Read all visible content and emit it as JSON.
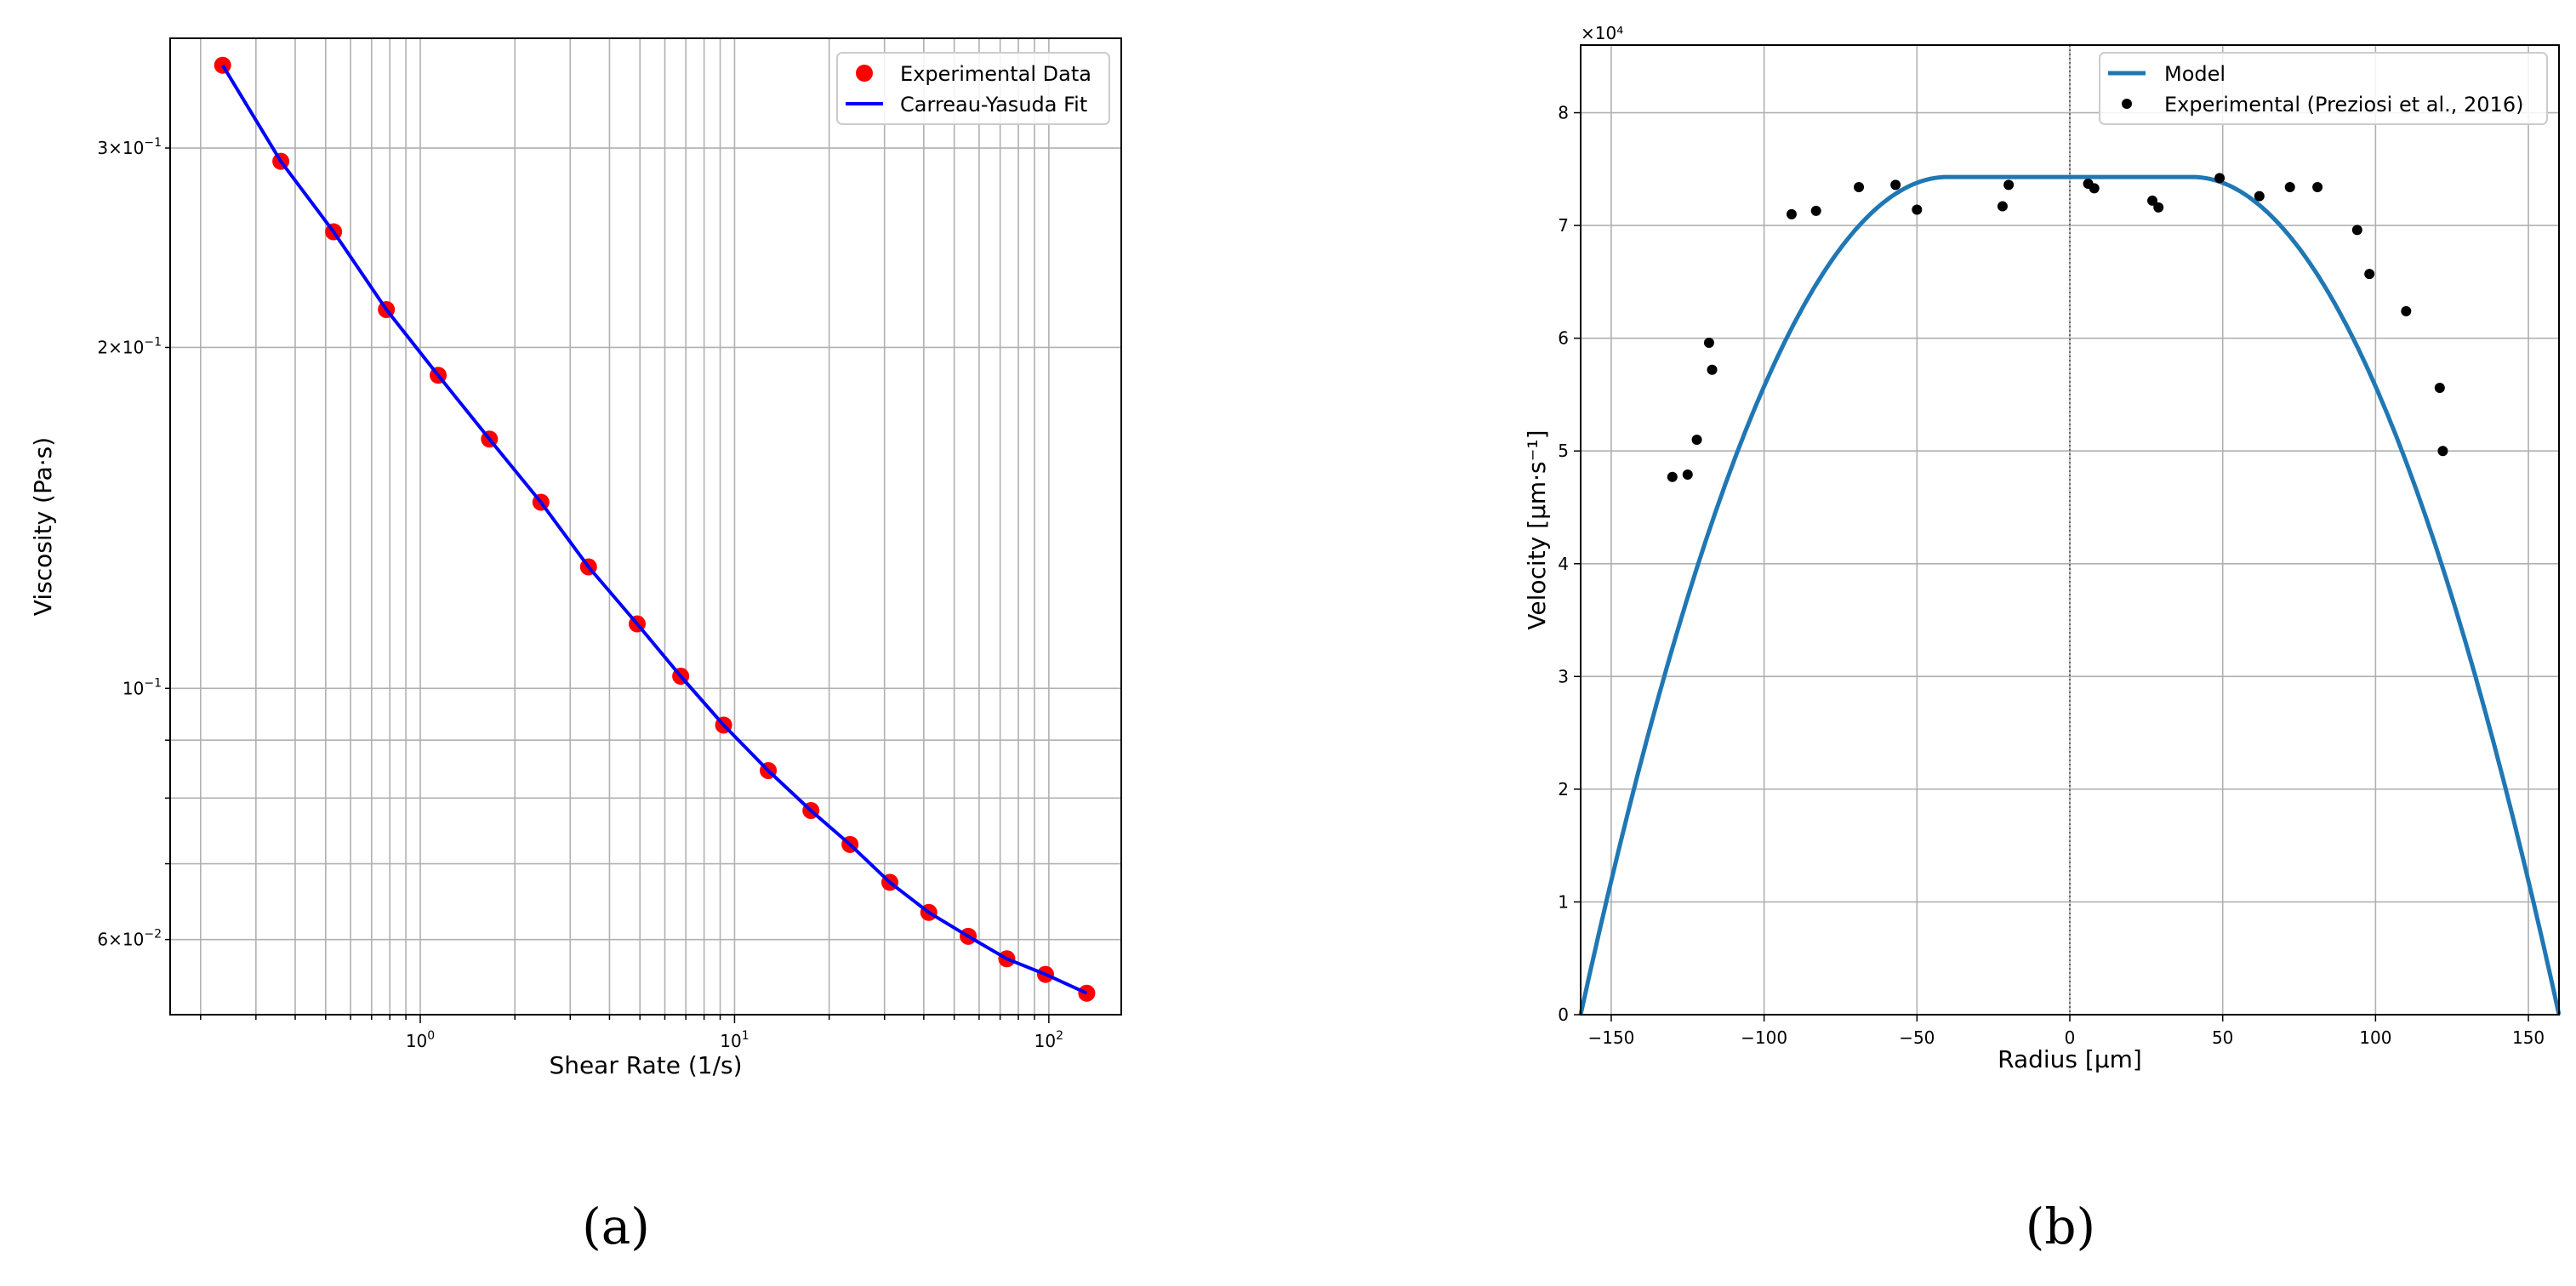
{
  "chart_data": [
    {
      "type": "line",
      "panel_label": "(a)",
      "title": "",
      "xlabel": "Shear Rate (1/s)",
      "ylabel": "Viscosity (Pa·s)",
      "xscale": "log",
      "yscale": "log",
      "xlim": [
        0.16,
        170
      ],
      "ylim": [
        0.0515,
        0.375
      ],
      "grid": true,
      "legend_position": "top-right",
      "x_tick_labels": [
        {
          "value": 1,
          "base": "10",
          "exp": "0"
        },
        {
          "value": 10,
          "base": "10",
          "exp": "1"
        },
        {
          "value": 100,
          "base": "10",
          "exp": "2"
        }
      ],
      "y_tick_labels": [
        {
          "value": 0.3,
          "mant": "3",
          "base": "10",
          "exp": "−1"
        },
        {
          "value": 0.2,
          "mant": "2",
          "base": "10",
          "exp": "−1"
        },
        {
          "value": 0.1,
          "mant": "",
          "base": "10",
          "exp": "−1"
        },
        {
          "value": 0.06,
          "mant": "6",
          "base": "10",
          "exp": "−2"
        }
      ],
      "series": [
        {
          "name": "Experimental Data",
          "kind": "scatter",
          "color": "#ff0000",
          "x": [
            0.235,
            0.36,
            0.53,
            0.78,
            1.14,
            1.66,
            2.42,
            3.43,
            4.9,
            6.74,
            9.23,
            12.8,
            17.5,
            23.3,
            31.2,
            41.5,
            55.4,
            73.5,
            97.6,
            132
          ],
          "y": [
            0.355,
            0.292,
            0.253,
            0.216,
            0.189,
            0.166,
            0.146,
            0.128,
            0.114,
            0.1025,
            0.0928,
            0.0846,
            0.078,
            0.0728,
            0.0674,
            0.0634,
            0.0604,
            0.0577,
            0.0559,
            0.0538
          ]
        },
        {
          "name": "Carreau-Yasuda Fit",
          "kind": "line",
          "color": "#0000ff",
          "x": [
            0.235,
            0.36,
            0.53,
            0.78,
            1.14,
            1.66,
            2.42,
            3.43,
            4.9,
            6.74,
            9.23,
            12.8,
            17.5,
            23.3,
            31.2,
            41.5,
            55.4,
            73.5,
            97.6,
            132
          ],
          "y": [
            0.355,
            0.292,
            0.253,
            0.216,
            0.189,
            0.166,
            0.146,
            0.128,
            0.114,
            0.1025,
            0.0928,
            0.0846,
            0.078,
            0.0728,
            0.0674,
            0.0634,
            0.0604,
            0.0577,
            0.0559,
            0.0538
          ]
        }
      ]
    },
    {
      "type": "line",
      "panel_label": "(b)",
      "title": "",
      "xlabel": "Radius [μm]",
      "ylabel": "Velocity [μm·s⁻¹]",
      "y_offset_label": "×10⁴",
      "xlim": [
        -160,
        160
      ],
      "ylim": [
        0,
        8.6
      ],
      "grid": true,
      "vertical_reference_line": 0,
      "legend_position": "top-right",
      "x_ticks": [
        -150,
        -100,
        -50,
        0,
        50,
        100,
        150
      ],
      "x_tick_labels": [
        "−150",
        "−100",
        "−50",
        "0",
        "50",
        "100",
        "150"
      ],
      "y_ticks": [
        0,
        1,
        2,
        3,
        4,
        5,
        6,
        7,
        8
      ],
      "y_tick_labels": [
        "0",
        "1",
        "2",
        "3",
        "4",
        "5",
        "6",
        "7",
        "8"
      ],
      "series": [
        {
          "name": "Model",
          "kind": "line",
          "color": "#1f77b4",
          "model": "plug_flow",
          "radius": 160,
          "plug_radius": 40,
          "vmax": 7.43
        },
        {
          "name": "Experimental (Preziosi et al., 2016)",
          "kind": "scatter",
          "color": "#000000",
          "x": [
            -130,
            -125,
            -122,
            -118,
            -117,
            -91,
            -83,
            -69,
            -57,
            -50,
            -22,
            -20,
            6,
            8,
            27,
            29,
            49,
            62,
            72,
            81,
            94,
            98,
            110,
            121,
            122
          ],
          "y": [
            4.77,
            4.79,
            5.1,
            5.96,
            5.72,
            7.1,
            7.13,
            7.34,
            7.36,
            7.14,
            7.17,
            7.36,
            7.37,
            7.33,
            7.22,
            7.16,
            7.42,
            7.26,
            7.34,
            7.34,
            6.96,
            6.57,
            6.24,
            5.56,
            5.0
          ]
        }
      ]
    }
  ]
}
